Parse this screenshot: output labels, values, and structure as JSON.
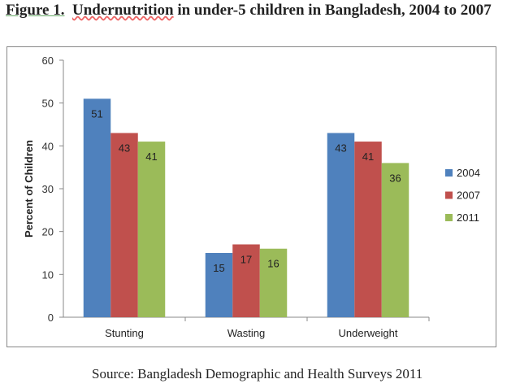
{
  "title_prefix": "Figure 1.",
  "title_word": "Undernutrition",
  "title_rest": "in under-5 children in Bangladesh, 2004 to 2007",
  "source": "Source: Bangladesh Demographic and Health Surveys 2011",
  "chart_data": {
    "type": "bar",
    "title": "Figure 1. Undernutrition in under-5 children in Bangladesh, 2004 to 2007",
    "xlabel": "",
    "ylabel": "Percent of Children",
    "ylim": [
      0,
      60
    ],
    "yticks": [
      0,
      10,
      20,
      30,
      40,
      50,
      60
    ],
    "grid": false,
    "legend": "right",
    "categories": [
      "Stunting",
      "Wasting",
      "Underweight"
    ],
    "series": [
      {
        "name": "2004",
        "color": "#4f81bd",
        "values": [
          51,
          15,
          43
        ]
      },
      {
        "name": "2007",
        "color": "#c0504d",
        "values": [
          43,
          17,
          41
        ]
      },
      {
        "name": "2011",
        "color": "#9bbb59",
        "values": [
          41,
          16,
          36
        ]
      }
    ]
  }
}
